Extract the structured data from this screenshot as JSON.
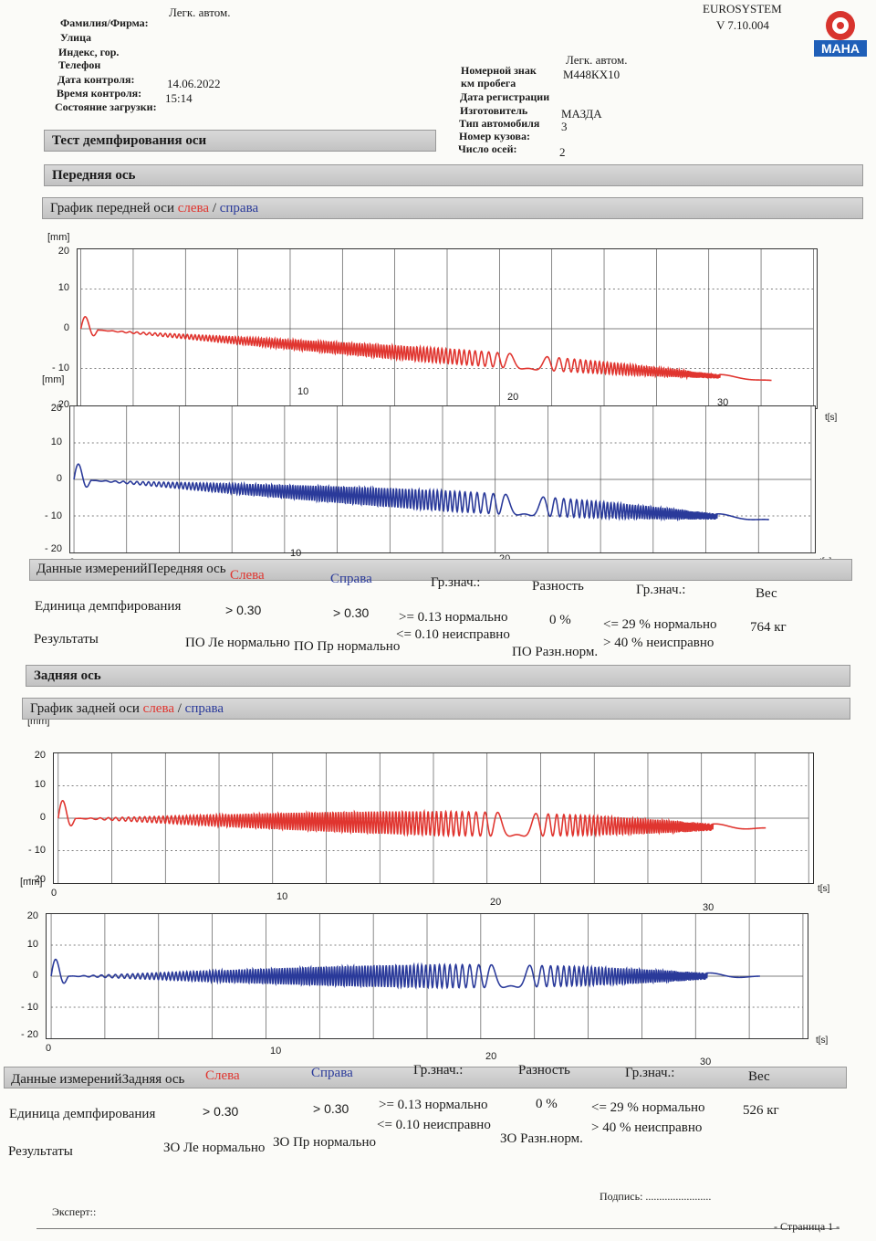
{
  "header": {
    "vehicle_type": "Легк. автом.",
    "system": "EUROSYSTEM",
    "version": "V 7.10.004",
    "logo_text": "MAHA",
    "labels": {
      "surname": "Фамилия/Фирма:",
      "street": "Улица",
      "postcode": "Индекс, гор.",
      "phone": "Телефон",
      "date": "Дата контроля:",
      "time": "Время контроля:",
      "load": "Состояние загрузки:"
    },
    "values": {
      "date": "14.06.2022",
      "time": "15:14"
    },
    "right_labels": {
      "plate": "Номерной знак",
      "km": "км пробега",
      "reg": "Дата регистрации",
      "maker": "Изготовитель",
      "type": "Тип автомобиля",
      "body": "Номер кузова:",
      "axles": "Число осей:"
    },
    "right_values": {
      "category": "Легк. автом.",
      "plate": "М448КХ10",
      "maker": "МАЗДА",
      "type": "3",
      "axles": "2"
    }
  },
  "test_title": "Тест демпфирования оси",
  "front": {
    "section": "Передняя ось",
    "graph_title_prefix": "График передней оси ",
    "left": "слева",
    "sep": " / ",
    "right": "справа",
    "data_head": "Данные измерений",
    "axle": "Передняя ось",
    "left_col": "Слева",
    "right_col": "Справа",
    "limit1": "Гр.знач.:",
    "diff": "Разность",
    "limit2": "Гр.знач.:",
    "weight": "Вес",
    "damping_label": "Единица демпфирования",
    "left_val": "> 0.30",
    "right_val": "> 0.30",
    "lim_ok": ">= 0.13 нормально",
    "lim_bad": "<= 0.10 неисправно",
    "diff_val": "0 %",
    "diff_ok": "<= 29 % нормально",
    "diff_bad": "> 40 % неисправно",
    "weight_val": "764 кг",
    "results_label": "Результаты",
    "res_left": "ПО Ле нормально",
    "res_right": "ПО Пр нормально",
    "res_diff": "ПО Разн.норм."
  },
  "rear": {
    "section": "Задняя ось",
    "graph_title_prefix": "График задней оси ",
    "left": "слева",
    "sep": " / ",
    "right": "справа",
    "data_head": "Данные измерений",
    "axle": "Задняя ось",
    "left_col": "Слева",
    "right_col": "Справа",
    "limit1": "Гр.знач.:",
    "diff": "Разность",
    "limit2": "Гр.знач.:",
    "weight": "Вес",
    "damping_label": "Единица демпфирования",
    "left_val": "> 0.30",
    "right_val": "> 0.30",
    "lim_ok": ">= 0.13 нормально",
    "lim_bad": "<= 0.10 неисправно",
    "diff_val": "0 %",
    "diff_ok": "<= 29 % нормально",
    "diff_bad": "> 40 % неисправно",
    "weight_val": "526 кг",
    "results_label": "Результаты",
    "res_left": "ЗО Ле нормально",
    "res_right": "ЗО Пр нормально",
    "res_diff": "ЗО Разн.норм."
  },
  "axis": {
    "y_unit": "[mm]",
    "x_unit": "t[s]",
    "y_ticks": [
      "20",
      "10",
      "0",
      "- 10",
      "- 20"
    ],
    "x_ticks": [
      "0",
      "10",
      "20",
      "30"
    ]
  },
  "colors": {
    "left": "#e0352f",
    "right": "#2a3a9a"
  },
  "chart_data": [
    {
      "type": "line",
      "series": [
        {
          "name": "слева",
          "color": "#e0352f",
          "offset_start": 0,
          "offset_end": -13,
          "amplitude_peak": 2
        }
      ],
      "xlim": [
        0,
        35
      ],
      "ylim": [
        -20,
        20
      ]
    },
    {
      "type": "line",
      "series": [
        {
          "name": "справа",
          "color": "#2a3a9a",
          "offset_start": 0,
          "offset_end": -11,
          "amplitude_peak": 3
        }
      ],
      "xlim": [
        0,
        35
      ],
      "ylim": [
        -20,
        20
      ]
    },
    {
      "type": "line",
      "series": [
        {
          "name": "слева",
          "color": "#e0352f",
          "offset_start": 0,
          "offset_end": -3,
          "amplitude_peak": 4
        }
      ],
      "xlim": [
        0,
        35
      ],
      "ylim": [
        -20,
        20
      ]
    },
    {
      "type": "line",
      "series": [
        {
          "name": "справа",
          "color": "#2a3a9a",
          "offset_start": 0,
          "offset_end": 0,
          "amplitude_peak": 4
        }
      ],
      "xlim": [
        0,
        35
      ],
      "ylim": [
        -20,
        20
      ]
    }
  ],
  "footer": {
    "signature": "Подпись: ........................",
    "expert": "Эксперт::",
    "page": "- Страница 1 -"
  }
}
